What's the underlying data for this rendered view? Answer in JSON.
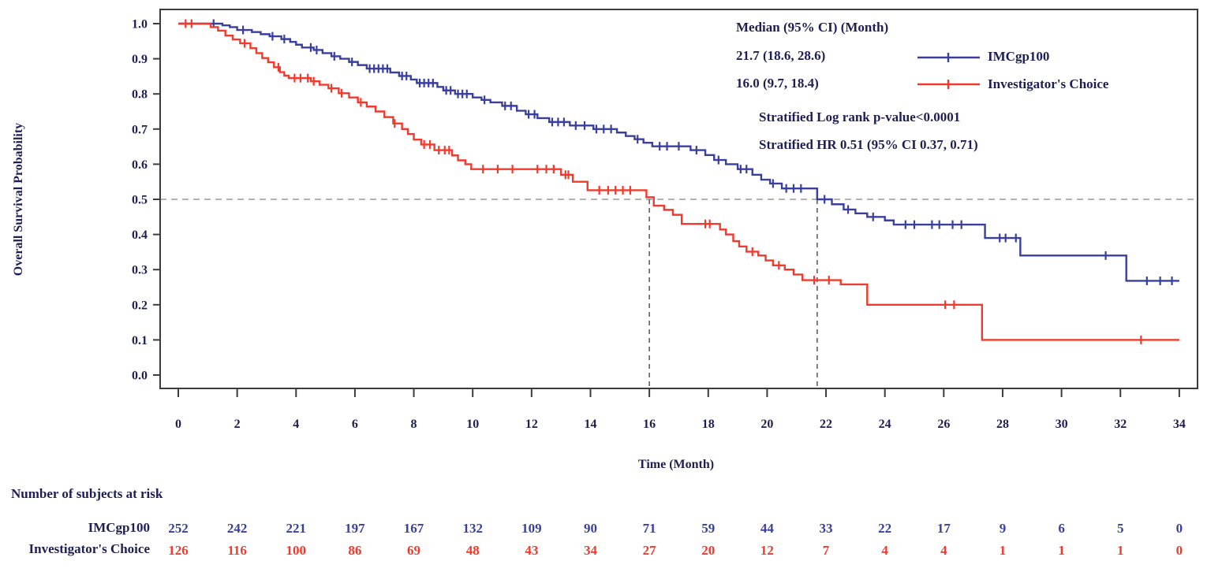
{
  "figure": {
    "y_axis_title": "Overall Survival Probability",
    "x_axis_title": "Time (Month)",
    "annotation": {
      "median_header": "Median (95% CI) (Month)",
      "median_imcgp100": "21.7 (18.6, 28.6)",
      "median_investigator": "16.0 (9.7, 18.4)",
      "logrank": "Stratified Log rank p-value<0.0001",
      "hazard_ratio": "Stratified HR 0.51 (95% CI 0.37, 0.71)"
    },
    "legend": {
      "imcgp100_label": "IMCgp100",
      "investigator_label": "Investigator's Choice"
    },
    "risk_table": {
      "title": "Number of subjects at risk",
      "row_label_imcgp100": "IMCgp100",
      "row_label_investigator": "Investigator's Choice"
    }
  },
  "chart_data": {
    "type": "line",
    "subtype": "kaplan-meier-step",
    "title": "",
    "xlabel": "Time (Month)",
    "ylabel": "Overall Survival Probability",
    "xlim": [
      0,
      34
    ],
    "ylim": [
      0.0,
      1.0
    ],
    "xticks": [
      0,
      2,
      4,
      6,
      8,
      10,
      12,
      14,
      16,
      18,
      20,
      22,
      24,
      26,
      28,
      30,
      32,
      34
    ],
    "ytick_labels": [
      "0.0",
      "0.1",
      "0.2",
      "0.3",
      "0.4",
      "0.5",
      "0.6",
      "0.7",
      "0.8",
      "0.9",
      "1.0"
    ],
    "grid": false,
    "legend_position": "inside-top-right",
    "reference_line_y": 0.5,
    "median_drop_lines_x": [
      16.0,
      21.7
    ],
    "colors": {
      "imcgp100": "#3a3f9e",
      "investigator": "#ef3a2d",
      "text": "#1e1e52",
      "axis": "#3c3c3c",
      "reference_dash": "#9a9a9a",
      "median_dash": "#5f5f5f"
    },
    "series": [
      {
        "key": "imcgp100",
        "name": "IMCgp100",
        "median_months": 21.7,
        "median_ci": [
          18.6,
          28.6
        ],
        "points": [
          [
            0,
            1.0
          ],
          [
            1.5,
            0.995
          ],
          [
            1.75,
            0.99
          ],
          [
            2.0,
            0.982
          ],
          [
            2.5,
            0.976
          ],
          [
            2.8,
            0.97
          ],
          [
            3.1,
            0.964
          ],
          [
            3.5,
            0.956
          ],
          [
            3.8,
            0.948
          ],
          [
            4.0,
            0.94
          ],
          [
            4.2,
            0.932
          ],
          [
            4.6,
            0.925
          ],
          [
            4.9,
            0.916
          ],
          [
            5.2,
            0.907
          ],
          [
            5.5,
            0.9
          ],
          [
            5.8,
            0.891
          ],
          [
            6.1,
            0.882
          ],
          [
            6.4,
            0.872
          ],
          [
            7.2,
            0.861
          ],
          [
            7.5,
            0.851
          ],
          [
            7.9,
            0.841
          ],
          [
            8.1,
            0.831
          ],
          [
            8.8,
            0.82
          ],
          [
            9.0,
            0.81
          ],
          [
            9.4,
            0.8
          ],
          [
            10.0,
            0.79
          ],
          [
            10.3,
            0.783
          ],
          [
            10.6,
            0.776
          ],
          [
            11.0,
            0.766
          ],
          [
            11.5,
            0.752
          ],
          [
            11.8,
            0.742
          ],
          [
            12.2,
            0.731
          ],
          [
            12.6,
            0.72
          ],
          [
            13.3,
            0.71
          ],
          [
            14.1,
            0.7
          ],
          [
            14.9,
            0.69
          ],
          [
            15.2,
            0.68
          ],
          [
            15.5,
            0.671
          ],
          [
            15.8,
            0.661
          ],
          [
            16.1,
            0.651
          ],
          [
            17.4,
            0.64
          ],
          [
            17.9,
            0.626
          ],
          [
            18.2,
            0.612
          ],
          [
            18.6,
            0.6
          ],
          [
            19.0,
            0.586
          ],
          [
            19.5,
            0.57
          ],
          [
            19.8,
            0.556
          ],
          [
            20.1,
            0.545
          ],
          [
            20.5,
            0.531
          ],
          [
            21.7,
            0.5
          ],
          [
            22.2,
            0.486
          ],
          [
            22.6,
            0.471
          ],
          [
            23.0,
            0.46
          ],
          [
            23.4,
            0.45
          ],
          [
            24.0,
            0.44
          ],
          [
            24.3,
            0.428
          ],
          [
            27.4,
            0.39
          ],
          [
            28.6,
            0.34
          ],
          [
            32.2,
            0.268
          ],
          [
            34.0,
            0.268
          ]
        ],
        "censor_times": [
          1.2,
          2.2,
          3.2,
          3.6,
          4.5,
          4.7,
          5.3,
          5.9,
          6.5,
          6.65,
          6.8,
          6.95,
          7.1,
          7.6,
          7.75,
          8.2,
          8.35,
          8.5,
          8.65,
          9.1,
          9.25,
          9.5,
          9.65,
          9.8,
          10.4,
          11.1,
          11.3,
          11.9,
          12.1,
          12.7,
          12.9,
          13.1,
          13.5,
          13.8,
          14.2,
          14.45,
          14.7,
          15.6,
          16.35,
          16.6,
          17.0,
          17.6,
          18.35,
          19.1,
          19.3,
          20.2,
          20.65,
          20.9,
          21.15,
          21.95,
          22.75,
          23.6,
          24.7,
          25.0,
          25.6,
          25.85,
          26.3,
          26.6,
          27.9,
          28.1,
          28.45,
          31.5,
          32.9,
          33.35,
          33.75
        ]
      },
      {
        "key": "investigator",
        "name": "Investigator's Choice",
        "median_months": 16.0,
        "median_ci": [
          9.7,
          18.4
        ],
        "points": [
          [
            0,
            1.0
          ],
          [
            1.1,
            0.99
          ],
          [
            1.35,
            0.98
          ],
          [
            1.6,
            0.966
          ],
          [
            1.85,
            0.955
          ],
          [
            2.1,
            0.944
          ],
          [
            2.45,
            0.93
          ],
          [
            2.65,
            0.916
          ],
          [
            2.85,
            0.902
          ],
          [
            3.05,
            0.89
          ],
          [
            3.25,
            0.876
          ],
          [
            3.45,
            0.862
          ],
          [
            3.6,
            0.852
          ],
          [
            3.75,
            0.845
          ],
          [
            4.5,
            0.836
          ],
          [
            4.8,
            0.826
          ],
          [
            5.1,
            0.816
          ],
          [
            5.45,
            0.802
          ],
          [
            5.8,
            0.79
          ],
          [
            6.1,
            0.776
          ],
          [
            6.4,
            0.764
          ],
          [
            6.7,
            0.75
          ],
          [
            7.0,
            0.734
          ],
          [
            7.3,
            0.716
          ],
          [
            7.6,
            0.7
          ],
          [
            7.8,
            0.686
          ],
          [
            8.0,
            0.67
          ],
          [
            8.25,
            0.656
          ],
          [
            8.7,
            0.64
          ],
          [
            9.3,
            0.625
          ],
          [
            9.5,
            0.611
          ],
          [
            9.75,
            0.6
          ],
          [
            9.95,
            0.586
          ],
          [
            13.0,
            0.57
          ],
          [
            13.4,
            0.55
          ],
          [
            13.9,
            0.526
          ],
          [
            15.9,
            0.506
          ],
          [
            16.15,
            0.482
          ],
          [
            16.5,
            0.47
          ],
          [
            16.8,
            0.456
          ],
          [
            17.1,
            0.43
          ],
          [
            18.4,
            0.414
          ],
          [
            18.6,
            0.4
          ],
          [
            18.85,
            0.381
          ],
          [
            19.05,
            0.366
          ],
          [
            19.3,
            0.351
          ],
          [
            19.7,
            0.34
          ],
          [
            19.95,
            0.326
          ],
          [
            20.2,
            0.312
          ],
          [
            20.6,
            0.3
          ],
          [
            20.9,
            0.286
          ],
          [
            21.2,
            0.27
          ],
          [
            22.5,
            0.258
          ],
          [
            23.4,
            0.2
          ],
          [
            27.3,
            0.1
          ],
          [
            34.0,
            0.1
          ]
        ],
        "censor_times": [
          0.25,
          0.45,
          2.25,
          3.4,
          3.95,
          4.15,
          4.4,
          4.6,
          5.2,
          5.55,
          6.2,
          7.35,
          8.35,
          8.55,
          8.85,
          9.05,
          9.2,
          10.35,
          10.85,
          11.35,
          12.2,
          12.5,
          12.75,
          13.15,
          13.25,
          14.3,
          14.6,
          14.85,
          15.1,
          15.35,
          17.9,
          18.05,
          19.5,
          20.4,
          21.6,
          22.1,
          26.05,
          26.35,
          32.7
        ]
      }
    ],
    "risk_table": {
      "title": "Number of subjects at risk",
      "times": [
        0,
        2,
        4,
        6,
        8,
        10,
        12,
        14,
        16,
        18,
        20,
        22,
        24,
        26,
        28,
        30,
        32,
        34
      ],
      "rows": [
        {
          "key": "imcgp100",
          "label": "IMCgp100",
          "values": [
            252,
            242,
            221,
            197,
            167,
            132,
            109,
            90,
            71,
            59,
            44,
            33,
            22,
            17,
            9,
            6,
            5,
            0
          ]
        },
        {
          "key": "investigator",
          "label": "Investigator's Choice",
          "values": [
            126,
            116,
            100,
            86,
            69,
            48,
            43,
            34,
            27,
            20,
            12,
            7,
            4,
            4,
            1,
            1,
            1,
            0
          ]
        }
      ]
    }
  }
}
